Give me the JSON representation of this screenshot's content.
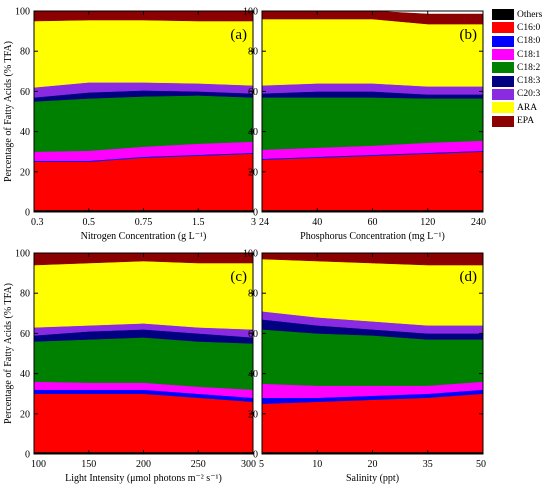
{
  "colors": {
    "Others": "#000000",
    "C16:0": "#ff0000",
    "C18:0": "#0000ff",
    "C18:1": "#ff00ff",
    "C18:2": "#008000",
    "C18:3": "#000080",
    "C20:3": "#8a2be2",
    "ARA": "#ffff00",
    "EPA": "#8b0000"
  },
  "legend": [
    "Others",
    "C16:0",
    "C18:0",
    "C18:1",
    "C18:2",
    "C18:3",
    "C20:3",
    "ARA",
    "EPA"
  ],
  "shared_ylabel": "Percentage of Fatty Acids (% TFA)",
  "chart_data": [
    {
      "type": "area",
      "panel_label": "(a)",
      "xlabel": "Nitrogen Concentration (g L⁻¹)",
      "x": [
        "0.3",
        "0.5",
        "0.75",
        "1.5",
        "3"
      ],
      "ylim": [
        0,
        100
      ],
      "yticks": [
        0,
        20,
        40,
        60,
        80,
        100
      ],
      "stacked": true,
      "series": [
        {
          "name": "Others",
          "values": [
            1,
            1,
            1,
            1,
            1
          ]
        },
        {
          "name": "C16:0",
          "values": [
            24,
            24,
            26,
            27,
            28
          ]
        },
        {
          "name": "C18:0",
          "values": [
            0.5,
            0.5,
            0.5,
            0.5,
            0.5
          ]
        },
        {
          "name": "C18:1",
          "values": [
            4.5,
            5,
            5,
            5.5,
            5.5
          ]
        },
        {
          "name": "C18:2",
          "values": [
            25,
            26,
            25,
            24,
            22
          ]
        },
        {
          "name": "C18:3",
          "values": [
            2,
            3,
            3,
            2,
            2
          ]
        },
        {
          "name": "C20:3",
          "values": [
            5,
            5,
            4,
            4,
            4
          ]
        },
        {
          "name": "ARA",
          "values": [
            33,
            31,
            31,
            31,
            32
          ]
        },
        {
          "name": "EPA",
          "values": [
            5,
            4.5,
            4.5,
            5,
            5
          ]
        }
      ]
    },
    {
      "type": "area",
      "panel_label": "(b)",
      "xlabel": "Phosphorus Concentration (mg L⁻¹)",
      "x": [
        "24",
        "40",
        "60",
        "120",
        "240"
      ],
      "ylim": [
        0,
        100
      ],
      "yticks": [
        0,
        20,
        40,
        60,
        80,
        100
      ],
      "stacked": true,
      "series": [
        {
          "name": "Others",
          "values": [
            1,
            1,
            1,
            1,
            1
          ]
        },
        {
          "name": "C16:0",
          "values": [
            25,
            26,
            27,
            28,
            29
          ]
        },
        {
          "name": "C18:0",
          "values": [
            0.5,
            0.5,
            0.5,
            0.5,
            0.5
          ]
        },
        {
          "name": "C18:1",
          "values": [
            4.5,
            4.5,
            4.5,
            5,
            5
          ]
        },
        {
          "name": "C18:2",
          "values": [
            26,
            25,
            24,
            22,
            21
          ]
        },
        {
          "name": "C18:3",
          "values": [
            2,
            3,
            3,
            2,
            2
          ]
        },
        {
          "name": "C20:3",
          "values": [
            4,
            4,
            4,
            4,
            4
          ]
        },
        {
          "name": "ARA",
          "values": [
            33,
            32,
            32,
            31,
            31
          ]
        },
        {
          "name": "EPA",
          "values": [
            4,
            4,
            4,
            5,
            5
          ]
        }
      ]
    },
    {
      "type": "area",
      "panel_label": "(c)",
      "xlabel": "Light Intensity (μmol photons m⁻² s⁻¹)",
      "x": [
        100,
        150,
        200,
        250,
        300
      ],
      "xlim": [
        100,
        300
      ],
      "ylim": [
        0,
        100
      ],
      "yticks": [
        0,
        20,
        40,
        60,
        80,
        100
      ],
      "stacked": true,
      "series": [
        {
          "name": "Others",
          "values": [
            1,
            1,
            1,
            1,
            1
          ]
        },
        {
          "name": "C16:0",
          "values": [
            29,
            29,
            29,
            27,
            25
          ]
        },
        {
          "name": "C18:0",
          "values": [
            2,
            2,
            2,
            2,
            2
          ]
        },
        {
          "name": "C18:1",
          "values": [
            4,
            3.5,
            3.5,
            3.5,
            4
          ]
        },
        {
          "name": "C18:2",
          "values": [
            20,
            21.5,
            22.5,
            22.5,
            23
          ]
        },
        {
          "name": "C18:3",
          "values": [
            3,
            4,
            4,
            4,
            3
          ]
        },
        {
          "name": "C20:3",
          "values": [
            4,
            3,
            3,
            3,
            4
          ]
        },
        {
          "name": "ARA",
          "values": [
            31,
            31,
            31,
            32,
            33
          ]
        },
        {
          "name": "EPA",
          "values": [
            6,
            5,
            4,
            5,
            5
          ]
        }
      ]
    },
    {
      "type": "area",
      "panel_label": "(d)",
      "xlabel": "Salinity (ppt)",
      "x": [
        "5",
        "10",
        "20",
        "35",
        "50"
      ],
      "ylim": [
        0,
        100
      ],
      "yticks": [
        0,
        20,
        40,
        60,
        80,
        100
      ],
      "stacked": true,
      "series": [
        {
          "name": "Others",
          "values": [
            1,
            1,
            1,
            1,
            1
          ]
        },
        {
          "name": "C16:0",
          "values": [
            24,
            25,
            26,
            27,
            29
          ]
        },
        {
          "name": "C18:0",
          "values": [
            3,
            2,
            2,
            2,
            2
          ]
        },
        {
          "name": "C18:1",
          "values": [
            7,
            6,
            5,
            4,
            4
          ]
        },
        {
          "name": "C18:2",
          "values": [
            27,
            26,
            25,
            23,
            21
          ]
        },
        {
          "name": "C18:3",
          "values": [
            5,
            4,
            3,
            3,
            3
          ]
        },
        {
          "name": "C20:3",
          "values": [
            4,
            4,
            4,
            4,
            4
          ]
        },
        {
          "name": "ARA",
          "values": [
            26,
            28,
            29,
            30,
            30
          ]
        },
        {
          "name": "EPA",
          "values": [
            3,
            4,
            5,
            6,
            6
          ]
        }
      ]
    }
  ]
}
